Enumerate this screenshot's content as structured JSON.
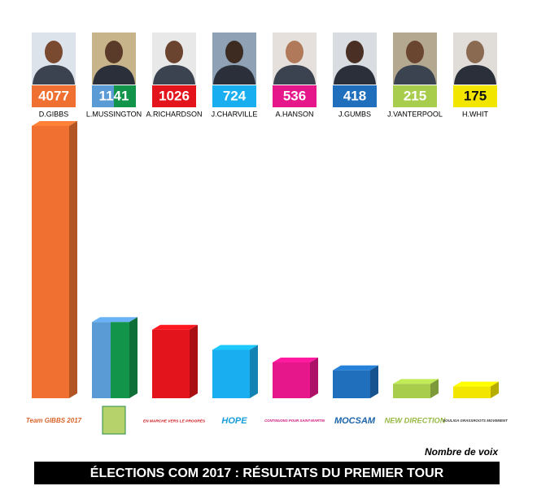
{
  "chart_data": {
    "type": "bar",
    "title": "ÉLECTIONS COM 2017 : RÉSULTATS DU PREMIER TOUR",
    "value_axis_label": "Nombre de voix",
    "categories": [
      "D.GIBBS",
      "L.MUSSINGTON",
      "A.RICHARDSON",
      "J.CHARVILLE",
      "A.HANSON",
      "J.GUMBS",
      "J.VANTERPOOL",
      "H.WHIT"
    ],
    "values": [
      4077,
      1141,
      1026,
      724,
      536,
      418,
      215,
      175
    ],
    "colors": [
      "#ef7030",
      [
        "#5b9bd5",
        "#12944a"
      ],
      "#e3141b",
      "#19aef0",
      "#e6178a",
      "#1f6fbd",
      "#a8cc4c",
      "#f2e600"
    ],
    "logos": [
      "Team GIBBS 2017",
      null,
      "EN MARCHE VERS LE PROGRÈS",
      "HOPE",
      "CONTINUONS POUR SAINT-MARTIN",
      "MOCSAM",
      "NEW DIRECTION",
      "SOULIGA GRASSROOTS MOVEMENT"
    ]
  }
}
